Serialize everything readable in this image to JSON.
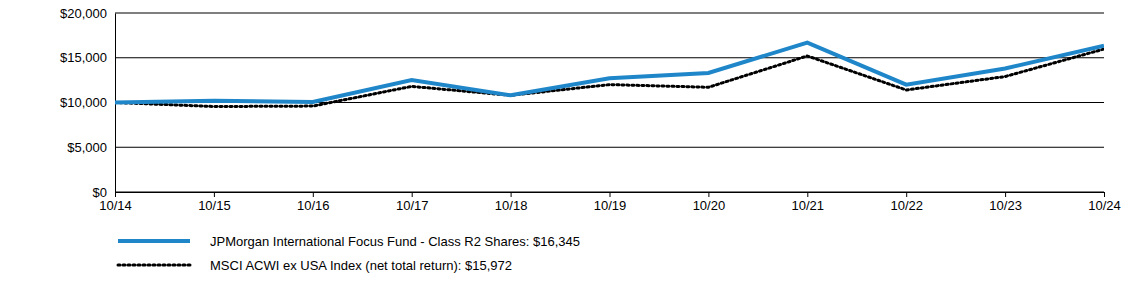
{
  "chart_data": {
    "type": "line",
    "categories": [
      "10/14",
      "10/15",
      "10/16",
      "10/17",
      "10/18",
      "10/19",
      "10/20",
      "10/21",
      "10/22",
      "10/23",
      "10/24"
    ],
    "series": [
      {
        "name": "JPMorgan International Focus Fund - Class R2 Shares: $16,345",
        "color": "#1f87c9",
        "line_style": "solid",
        "values": [
          10000,
          10200,
          10050,
          12500,
          10800,
          12700,
          13300,
          16700,
          12000,
          13800,
          16345
        ]
      },
      {
        "name": "MSCI ACWI ex USA Index (net total return): $15,972",
        "color": "#000000",
        "line_style": "dotted",
        "values": [
          10000,
          9550,
          9600,
          11800,
          10800,
          12000,
          11700,
          15200,
          11400,
          12900,
          15972
        ]
      }
    ],
    "ylim": [
      0,
      20000
    ],
    "yticks": [
      {
        "value": 0,
        "label": "$0"
      },
      {
        "value": 5000,
        "label": "$5,000"
      },
      {
        "value": 10000,
        "label": "$10,000"
      },
      {
        "value": 15000,
        "label": "$15,000"
      },
      {
        "value": 20000,
        "label": "$20,000"
      }
    ],
    "grid": true,
    "legend": "bottom"
  }
}
